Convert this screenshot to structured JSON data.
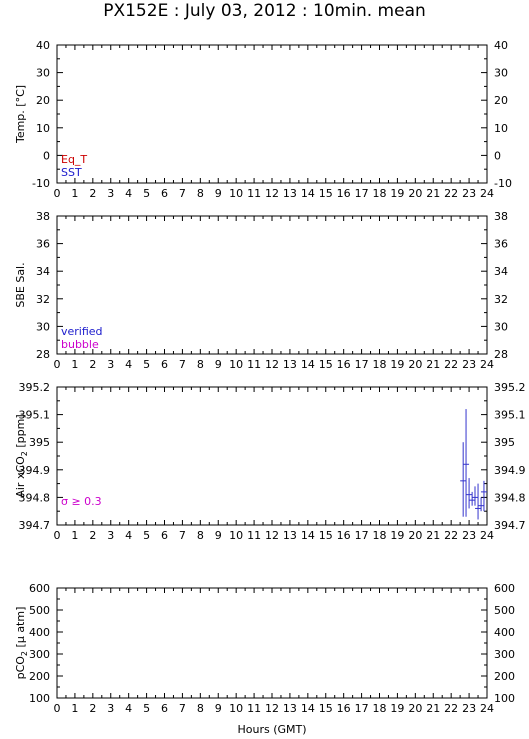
{
  "title": "PX152E : July 03, 2012 : 10min. mean",
  "colors": {
    "eq_t": "#cc0000",
    "sst": "#1a1acc",
    "verified": "#1a1acc",
    "bubble": "#cc00cc",
    "sigma": "#cc00cc",
    "air_series": "#3333cc",
    "axis": "#000000"
  },
  "chart_data": [
    {
      "type": "line",
      "ylabel": "Temp. [°C]",
      "xlim": [
        0,
        24
      ],
      "ylim": [
        -10,
        40
      ],
      "yticks": [
        "-10",
        "0",
        "10",
        "20",
        "30",
        "40"
      ],
      "xticks": [
        "0",
        "1",
        "2",
        "3",
        "4",
        "5",
        "6",
        "7",
        "8",
        "9",
        "10",
        "11",
        "12",
        "13",
        "14",
        "15",
        "16",
        "17",
        "18",
        "19",
        "20",
        "21",
        "22",
        "23",
        "24"
      ],
      "legend": [
        "Eq_T",
        "SST"
      ],
      "legend_placement": "bottom-left",
      "series": []
    },
    {
      "type": "line",
      "ylabel": "SBE Sal.",
      "xlim": [
        0,
        24
      ],
      "ylim": [
        28,
        38
      ],
      "yticks": [
        "28",
        "30",
        "32",
        "34",
        "36",
        "38"
      ],
      "xticks": [
        "0",
        "1",
        "2",
        "3",
        "4",
        "5",
        "6",
        "7",
        "8",
        "9",
        "10",
        "11",
        "12",
        "13",
        "14",
        "15",
        "16",
        "17",
        "18",
        "19",
        "20",
        "21",
        "22",
        "23",
        "24"
      ],
      "legend": [
        "verified",
        "bubble"
      ],
      "legend_placement": "bottom-left",
      "series": []
    },
    {
      "type": "scatter",
      "ylabel_main": "Air xCO",
      "ylabel_sub": "2",
      "ylabel_unit": " [ppm]",
      "xlim": [
        0,
        24
      ],
      "ylim": [
        394.7,
        395.2
      ],
      "yticks": [
        "394.7",
        "394.8",
        "394.9",
        "395",
        "395.1",
        "395.2"
      ],
      "xticks": [
        "0",
        "1",
        "2",
        "3",
        "4",
        "5",
        "6",
        "7",
        "8",
        "9",
        "10",
        "11",
        "12",
        "13",
        "14",
        "15",
        "16",
        "17",
        "18",
        "19",
        "20",
        "21",
        "22",
        "23",
        "24"
      ],
      "annotation": "σ ≥ 0.3",
      "series": [
        {
          "points": [
            {
              "x": 22.67,
              "y": 394.86,
              "lo": 394.73,
              "hi": 395.0
            },
            {
              "x": 22.83,
              "y": 394.92,
              "lo": 394.73,
              "hi": 395.12
            },
            {
              "x": 23.0,
              "y": 394.81,
              "lo": 394.76,
              "hi": 394.87
            },
            {
              "x": 23.17,
              "y": 394.79,
              "lo": 394.77,
              "hi": 394.82
            },
            {
              "x": 23.33,
              "y": 394.8,
              "lo": 394.77,
              "hi": 394.84
            },
            {
              "x": 23.5,
              "y": 394.76,
              "lo": 394.72,
              "hi": 394.85
            },
            {
              "x": 23.67,
              "y": 394.77,
              "lo": 394.75,
              "hi": 394.8
            },
            {
              "x": 23.83,
              "y": 394.82,
              "lo": 394.75,
              "hi": 394.86
            }
          ]
        }
      ]
    },
    {
      "type": "line",
      "ylabel_main": "pCO",
      "ylabel_sub": "2",
      "ylabel_unit": " [µ atm]",
      "xlabel": "Hours (GMT)",
      "xlim": [
        0,
        24
      ],
      "ylim": [
        100,
        600
      ],
      "yticks": [
        "100",
        "200",
        "300",
        "400",
        "500",
        "600"
      ],
      "xticks": [
        "0",
        "1",
        "2",
        "3",
        "4",
        "5",
        "6",
        "7",
        "8",
        "9",
        "10",
        "11",
        "12",
        "13",
        "14",
        "15",
        "16",
        "17",
        "18",
        "19",
        "20",
        "21",
        "22",
        "23",
        "24"
      ],
      "series": []
    }
  ]
}
